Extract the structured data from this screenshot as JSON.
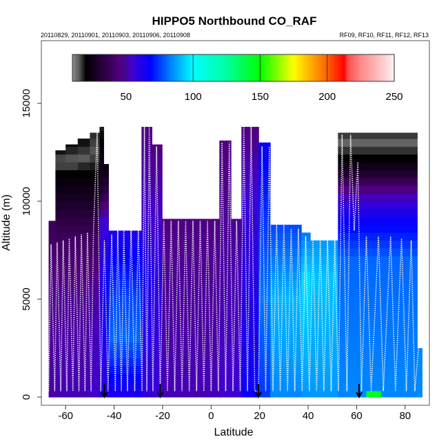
{
  "chart_data": {
    "type": "heatmap",
    "title": "HIPPO5 Northbound CO_RAF",
    "subtitle_left": "20110829, 20110901, 20110903, 20110906, 20110908",
    "subtitle_right": "RF09, RF10, RF11, RF12, RF13",
    "xlabel": "Latitude",
    "ylabel": "Altitude (m)",
    "xlim": [
      -70,
      90
    ],
    "ylim": [
      -420,
      18200
    ],
    "xticks": [
      -60,
      -40,
      -20,
      0,
      20,
      40,
      60,
      80
    ],
    "yticks": [
      0,
      5000,
      10000,
      15000
    ],
    "colorbar": {
      "range": [
        10,
        250
      ],
      "ticks": [
        50,
        100,
        150,
        200,
        250
      ],
      "stops": [
        [
          10,
          "#8c8c8c"
        ],
        [
          15,
          "#5a5a5a"
        ],
        [
          20,
          "#000000"
        ],
        [
          45,
          "#50007a"
        ],
        [
          55,
          "#4000d0"
        ],
        [
          68,
          "#0000ff"
        ],
        [
          85,
          "#0090ff"
        ],
        [
          100,
          "#00ffff"
        ],
        [
          125,
          "#00ffa0"
        ],
        [
          150,
          "#00ff00"
        ],
        [
          175,
          "#ffff00"
        ],
        [
          200,
          "#ff6000"
        ],
        [
          213,
          "#ff0000"
        ],
        [
          215,
          "#ff4848"
        ],
        [
          225,
          "#ff8a8a"
        ],
        [
          235,
          "#ffb0b0"
        ],
        [
          245,
          "#ffdada"
        ],
        [
          250,
          "#fff4f4"
        ]
      ]
    },
    "curtain": [
      {
        "lat": [
          -67,
          -64.2
        ],
        "top": 9000,
        "stops": [
          [
            0,
            50
          ],
          [
            6000,
            46
          ],
          [
            9000,
            38
          ]
        ]
      },
      {
        "lat": [
          -64.2,
          -60
        ],
        "top": 12600,
        "stops": [
          [
            0,
            52
          ],
          [
            5000,
            48
          ],
          [
            8000,
            40
          ],
          [
            10000,
            28
          ],
          [
            11500,
            20
          ],
          [
            12000,
            14
          ],
          [
            12600,
            20
          ]
        ]
      },
      {
        "lat": [
          -60,
          -55
        ],
        "top": 12900,
        "stops": [
          [
            0,
            52
          ],
          [
            5000,
            48
          ],
          [
            8000,
            40
          ],
          [
            10000,
            28
          ],
          [
            11500,
            20
          ],
          [
            12000,
            14
          ],
          [
            12900,
            20
          ]
        ]
      },
      {
        "lat": [
          -55,
          -50
        ],
        "top": 13200,
        "stops": [
          [
            0,
            52
          ],
          [
            5000,
            48
          ],
          [
            8000,
            40
          ],
          [
            10000,
            28
          ],
          [
            11500,
            20
          ],
          [
            12200,
            15
          ],
          [
            13200,
            20
          ]
        ]
      },
      {
        "lat": [
          -50,
          -46
        ],
        "top": 13500,
        "stops": [
          [
            0,
            55
          ],
          [
            5000,
            50
          ],
          [
            8000,
            40
          ],
          [
            10000,
            28
          ],
          [
            11500,
            20
          ],
          [
            12500,
            15
          ],
          [
            13500,
            18
          ]
        ]
      },
      {
        "lat": [
          -46,
          -44.3
        ],
        "top": 13800,
        "stops": [
          [
            0,
            60
          ],
          [
            6000,
            62
          ],
          [
            9000,
            55
          ],
          [
            10500,
            30
          ],
          [
            13800,
            18
          ]
        ]
      },
      {
        "lat": [
          -44.3,
          -42.3
        ],
        "top": 11900,
        "stops": [
          [
            0,
            60
          ],
          [
            6000,
            65
          ],
          [
            9000,
            55
          ],
          [
            10500,
            35
          ],
          [
            11900,
            20
          ]
        ]
      },
      {
        "lat": [
          -42.3,
          -28.7
        ],
        "top": 8500,
        "stops": [
          [
            0,
            62
          ],
          [
            3000,
            80
          ],
          [
            5000,
            76
          ],
          [
            8500,
            62
          ]
        ]
      },
      {
        "lat": [
          -28.7,
          -24.4
        ],
        "top": 13800,
        "stops": [
          [
            0,
            58
          ],
          [
            6000,
            64
          ],
          [
            9000,
            56
          ],
          [
            13800,
            45
          ]
        ]
      },
      {
        "lat": [
          -24.4,
          -20.2
        ],
        "top": 12900,
        "stops": [
          [
            0,
            56
          ],
          [
            6000,
            60
          ],
          [
            9000,
            54
          ],
          [
            12900,
            45
          ]
        ]
      },
      {
        "lat": [
          -20.2,
          3.4
        ],
        "top": 9100,
        "stops": [
          [
            0,
            52
          ],
          [
            9100,
            46
          ]
        ]
      },
      {
        "lat": [
          3.4,
          8.2
        ],
        "top": 13100,
        "stops": [
          [
            0,
            55
          ],
          [
            13100,
            45
          ]
        ]
      },
      {
        "lat": [
          8.2,
          12.5
        ],
        "top": 9100,
        "stops": [
          [
            0,
            56
          ],
          [
            9100,
            48
          ]
        ]
      },
      {
        "lat": [
          12.5,
          19.6
        ],
        "top": 13800,
        "stops": [
          [
            0,
            66
          ],
          [
            10000,
            56
          ],
          [
            13800,
            45
          ]
        ]
      },
      {
        "lat": [
          19.6,
          24.4
        ],
        "top": 13000,
        "stops": [
          [
            0,
            74
          ],
          [
            5000,
            82
          ],
          [
            13000,
            66
          ]
        ]
      },
      {
        "lat": [
          24.4,
          37.2
        ],
        "top": 8800,
        "stops": [
          [
            0,
            84
          ],
          [
            5000,
            90
          ],
          [
            8800,
            76
          ]
        ]
      },
      {
        "lat": [
          37.2,
          40.9
        ],
        "top": 8400,
        "stops": [
          [
            0,
            86
          ],
          [
            6000,
            96
          ],
          [
            8400,
            82
          ]
        ]
      },
      {
        "lat": [
          40.9,
          52.3
        ],
        "top": 8000,
        "stops": [
          [
            0,
            86
          ],
          [
            6000,
            92
          ],
          [
            8000,
            86
          ]
        ]
      },
      {
        "lat": [
          52.3,
          85
        ],
        "top": 13500,
        "stops": [
          [
            0,
            84
          ],
          [
            7000,
            80
          ],
          [
            8500,
            70
          ],
          [
            9500,
            62
          ],
          [
            10500,
            48
          ],
          [
            11500,
            28
          ],
          [
            12500,
            18
          ],
          [
            13000,
            14
          ],
          [
            13500,
            18
          ]
        ]
      },
      {
        "lat": [
          85,
          87
        ],
        "top": 2500,
        "stops": [
          [
            0,
            84
          ],
          [
            2500,
            84
          ]
        ]
      },
      {
        "lat": [
          64,
          70
        ],
        "top": 300,
        "stops": [
          [
            0,
            150
          ],
          [
            300,
            140
          ]
        ]
      }
    ],
    "track": [
      [
        -67,
        300
      ],
      [
        -66,
        7800
      ],
      [
        -64.5,
        300
      ],
      [
        -63.5,
        7900
      ],
      [
        -62,
        300
      ],
      [
        -61,
        8000
      ],
      [
        -59.5,
        300
      ],
      [
        -58.5,
        8100
      ],
      [
        -57,
        300
      ],
      [
        -56,
        8200
      ],
      [
        -54.5,
        300
      ],
      [
        -53.5,
        8300
      ],
      [
        -52,
        300
      ],
      [
        -51,
        8400
      ],
      [
        -49.5,
        300
      ],
      [
        -48.5,
        8500
      ],
      [
        -47,
        13500
      ],
      [
        -45.5,
        300
      ],
      [
        -44,
        8000
      ],
      [
        -42.5,
        300
      ],
      [
        -41,
        8300
      ],
      [
        -39.5,
        300
      ],
      [
        -38.5,
        8500
      ],
      [
        -37,
        300
      ],
      [
        -36,
        8600
      ],
      [
        -34.5,
        300
      ],
      [
        -33,
        8700
      ],
      [
        -31.5,
        300
      ],
      [
        -30,
        8700
      ],
      [
        -28.5,
        300
      ],
      [
        -27.5,
        13800
      ],
      [
        -26.5,
        300
      ],
      [
        -25.5,
        13800
      ],
      [
        -24,
        300
      ],
      [
        -22.5,
        12800
      ],
      [
        -21,
        300
      ],
      [
        -19.5,
        9000
      ],
      [
        -18,
        300
      ],
      [
        -16.5,
        9000
      ],
      [
        -15,
        300
      ],
      [
        -13.5,
        9000
      ],
      [
        -12,
        300
      ],
      [
        -10.5,
        9000
      ],
      [
        -9,
        300
      ],
      [
        -7.5,
        9000
      ],
      [
        -6,
        300
      ],
      [
        -4.5,
        9000
      ],
      [
        -3,
        300
      ],
      [
        -1.5,
        9000
      ],
      [
        0,
        300
      ],
      [
        1.5,
        9000
      ],
      [
        3,
        300
      ],
      [
        4.5,
        13000
      ],
      [
        6,
        300
      ],
      [
        7.5,
        13000
      ],
      [
        9,
        300
      ],
      [
        10.5,
        9000
      ],
      [
        12,
        300
      ],
      [
        13.5,
        13800
      ],
      [
        15,
        300
      ],
      [
        16.5,
        13800
      ],
      [
        18,
        300
      ],
      [
        19.5,
        300
      ],
      [
        21,
        12800
      ],
      [
        22.5,
        300
      ],
      [
        24,
        12800
      ],
      [
        25.5,
        300
      ],
      [
        27,
        8800
      ],
      [
        28.5,
        300
      ],
      [
        30,
        8800
      ],
      [
        31.5,
        300
      ],
      [
        33,
        8600
      ],
      [
        34.5,
        300
      ],
      [
        36,
        8600
      ],
      [
        37.5,
        300
      ],
      [
        39,
        8200
      ],
      [
        40.5,
        300
      ],
      [
        42,
        8000
      ],
      [
        43.5,
        300
      ],
      [
        45,
        8000
      ],
      [
        46.5,
        300
      ],
      [
        48,
        8000
      ],
      [
        49.5,
        300
      ],
      [
        51,
        8000
      ],
      [
        52.5,
        300
      ],
      [
        54,
        13400
      ],
      [
        56,
        300
      ],
      [
        57.5,
        13400
      ],
      [
        59,
        8500
      ],
      [
        60.5,
        12000
      ],
      [
        62,
        300
      ],
      [
        64,
        8200
      ],
      [
        66,
        300
      ],
      [
        69,
        8200
      ],
      [
        71,
        300
      ],
      [
        74,
        8200
      ],
      [
        76,
        300
      ],
      [
        78.5,
        8100
      ],
      [
        80.5,
        300
      ],
      [
        82.5,
        8000
      ],
      [
        84,
        300
      ],
      [
        85.5,
        2500
      ]
    ],
    "flight_boundaries_lat": [
      -44,
      -21,
      19.5,
      61
    ]
  }
}
